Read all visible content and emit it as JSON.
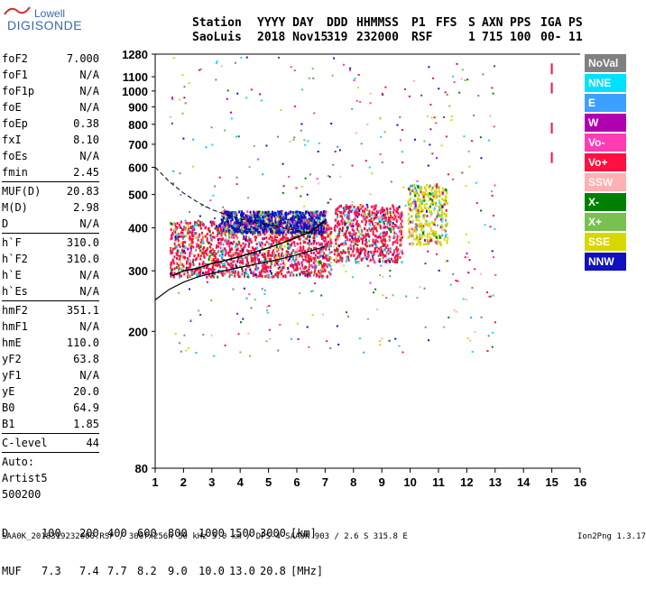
{
  "logo": {
    "line1": "Lowell",
    "line2": "DIGISONDE"
  },
  "header": {
    "labels": [
      "Station",
      "YYYY DAY",
      "DDD",
      "HHMMSS",
      "P1",
      "FFS",
      "S",
      "AXN",
      "PPS",
      "IGA",
      "PS"
    ],
    "values": [
      "SaoLuis",
      "2018 Nov15",
      "319",
      "232000",
      "RSF",
      "1",
      "715",
      "100",
      "00-",
      "11"
    ]
  },
  "params": [
    {
      "key": "foF2",
      "value": "7.000"
    },
    {
      "key": "foF1",
      "value": "N/A"
    },
    {
      "key": "foF1p",
      "value": "N/A"
    },
    {
      "key": "foE",
      "value": "N/A"
    },
    {
      "key": "foEp",
      "value": "0.38"
    },
    {
      "key": "fxI",
      "value": "8.10"
    },
    {
      "key": "foEs",
      "value": "N/A"
    },
    {
      "key": "fmin",
      "value": "2.45"
    },
    {
      "sep": true
    },
    {
      "key": "MUF(D)",
      "value": "20.83"
    },
    {
      "key": "M(D)",
      "value": "2.98"
    },
    {
      "key": "D",
      "value": "N/A"
    },
    {
      "sep": true
    },
    {
      "key": "h`F",
      "value": "310.0"
    },
    {
      "key": "h`F2",
      "value": "310.0"
    },
    {
      "key": "h`E",
      "value": "N/A"
    },
    {
      "key": "h`Es",
      "value": "N/A"
    },
    {
      "sep": true
    },
    {
      "key": "hmF2",
      "value": "351.1"
    },
    {
      "key": "hmF1",
      "value": "N/A"
    },
    {
      "key": "hmE",
      "value": "110.0"
    },
    {
      "key": "yF2",
      "value": "63.8"
    },
    {
      "key": "yF1",
      "value": "N/A"
    },
    {
      "key": "yE",
      "value": "20.0"
    },
    {
      "key": "B0",
      "value": "64.9"
    },
    {
      "key": "B1",
      "value": "1.85"
    },
    {
      "sep": true
    },
    {
      "key": "C-level",
      "value": "44"
    },
    {
      "sep": true
    },
    {
      "text": "Auto:"
    },
    {
      "text": "Artist5"
    },
    {
      "text": "500200"
    }
  ],
  "legend": [
    {
      "label": "NoVal",
      "color": "#808080"
    },
    {
      "label": "NNE",
      "color": "#00e0ff"
    },
    {
      "label": "E",
      "color": "#3ca0ff"
    },
    {
      "label": "W",
      "color": "#b000b0"
    },
    {
      "label": "Vo-",
      "color": "#ff3cb4"
    },
    {
      "label": "Vo+",
      "color": "#ff1040"
    },
    {
      "label": "SSW",
      "color": "#ffb0b0"
    },
    {
      "label": "X-",
      "color": "#008000"
    },
    {
      "label": "X+",
      "color": "#78c050"
    },
    {
      "label": "SSE",
      "color": "#d8d800"
    },
    {
      "label": "NNW",
      "color": "#1010c0"
    }
  ],
  "bottom": {
    "d_label": "D",
    "d_values": [
      "100",
      "200",
      "400",
      "600",
      "800",
      "1000",
      "1500",
      "3000",
      "[km]"
    ],
    "muf_label": "MUF",
    "muf_values": [
      "7.3",
      "7.4",
      "7.7",
      "8.2",
      "9.0",
      "10.0",
      "13.0",
      "20.8",
      "[MHz]"
    ]
  },
  "footer": "SAA0K_2018319232000.RSF / 300fx256h 50 kHz 5.0 km / DPS-4 SAA0K 903 / 2.6 S 315.8 E",
  "version": "Ion2Png 1.3.17",
  "chart_data": {
    "type": "scatter",
    "xlabel": "",
    "ylabel": "",
    "xlim": [
      1,
      16
    ],
    "ylim": [
      80,
      1280
    ],
    "y_scale": "log",
    "x_ticks": [
      "1",
      "2",
      "3",
      "4",
      "5",
      "6",
      "7",
      "8",
      "9",
      "10",
      "11",
      "12",
      "13",
      "14",
      "15",
      "16"
    ],
    "y_ticks": [
      80,
      200,
      300,
      400,
      500,
      600,
      700,
      800,
      900,
      1000,
      1100,
      1280
    ],
    "profile_curve": {
      "x": [
        1.0,
        1.5,
        2.0,
        2.5,
        3.0,
        3.5,
        4.0,
        4.5,
        5.0,
        5.5,
        6.0,
        6.5,
        7.0
      ],
      "y": [
        247,
        265,
        278,
        288,
        295,
        301,
        307,
        313,
        319,
        326,
        334,
        343,
        353
      ]
    },
    "dashed_curve": {
      "x": [
        1.0,
        1.5,
        2.0,
        2.5,
        3.0,
        3.5,
        4.0,
        4.5,
        5.0,
        5.5,
        6.0,
        6.5,
        7.0
      ],
      "y": [
        600,
        545,
        505,
        475,
        452,
        437,
        425,
        415,
        407,
        400,
        393,
        386,
        380
      ]
    },
    "trace": {
      "x": [
        1.6,
        2.0,
        2.5,
        3.0,
        3.5,
        4.0,
        4.5,
        5.0,
        5.5,
        6.0,
        6.5,
        7.0
      ],
      "y": [
        290,
        300,
        305,
        315,
        322,
        330,
        340,
        350,
        362,
        375,
        390,
        420
      ]
    },
    "echo_bands": [
      {
        "x0": 1.5,
        "x1": 7.2,
        "y0": 290,
        "y1": 420,
        "color": "#ff1040"
      },
      {
        "x0": 3.3,
        "x1": 7.0,
        "y0": 390,
        "y1": 450,
        "color": "#1010c0"
      },
      {
        "x0": 7.3,
        "x1": 9.7,
        "y0": 320,
        "y1": 470,
        "color": "#ff1040"
      },
      {
        "x0": 9.9,
        "x1": 11.3,
        "y0": 360,
        "y1": 540,
        "color": "#d8d800"
      }
    ]
  }
}
